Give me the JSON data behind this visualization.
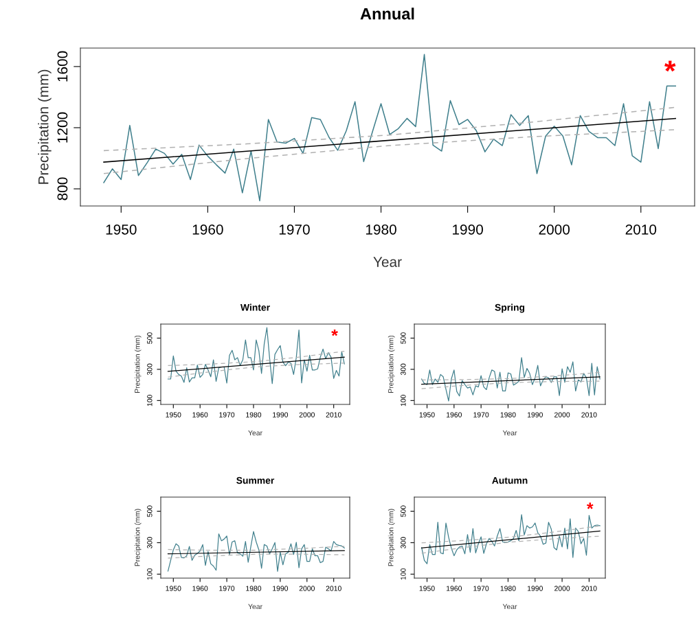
{
  "chart_data": [
    {
      "type": "line",
      "title": "Annual",
      "xlabel": "Year",
      "ylabel": "Precipitation (mm)",
      "xlim": [
        1945.3,
        2016.2
      ],
      "ylim": [
        688,
        1721
      ],
      "xticks": [
        1950,
        1960,
        1970,
        1980,
        1990,
        2000,
        2010
      ],
      "yticks": [
        800,
        1200,
        1600
      ],
      "annotations": [
        "*"
      ],
      "x": [
        1948,
        1949,
        1950,
        1951,
        1952,
        1953,
        1954,
        1955,
        1956,
        1957,
        1958,
        1959,
        1960,
        1961,
        1962,
        1963,
        1964,
        1965,
        1966,
        1967,
        1968,
        1969,
        1970,
        1971,
        1972,
        1973,
        1974,
        1975,
        1976,
        1977,
        1978,
        1979,
        1980,
        1981,
        1982,
        1983,
        1984,
        1985,
        1986,
        1987,
        1988,
        1989,
        1990,
        1991,
        1992,
        1993,
        1994,
        1995,
        1996,
        1997,
        1998,
        1999,
        2000,
        2001,
        2002,
        2003,
        2004,
        2005,
        2006,
        2007,
        2008,
        2009,
        2010,
        2011,
        2012,
        2013,
        2014
      ],
      "series": [
        {
          "color": "#3f7f8c",
          "values": [
            841,
            931,
            861,
            1215,
            887,
            970,
            1060,
            1032,
            962,
            1026,
            861,
            1086,
            1014,
            957,
            903,
            1060,
            774,
            1047,
            722,
            1254,
            1107,
            1099,
            1130,
            1032,
            1266,
            1254,
            1137,
            1052,
            1181,
            1370,
            978,
            1171,
            1357,
            1156,
            1194,
            1261,
            1207,
            1679,
            1086,
            1047,
            1377,
            1220,
            1254,
            1181,
            1042,
            1125,
            1083,
            1285,
            1215,
            1279,
            900,
            1145,
            1210,
            1145,
            957,
            1279,
            1176,
            1135,
            1135,
            1083,
            1357,
            1016,
            975,
            1370,
            1063,
            1473,
            1473
          ]
        },
        {
          "color": "#000000",
          "x": [
            1948,
            2014
          ],
          "values": [
            975,
            1260
          ]
        },
        {
          "color": "#b0b0b0",
          "line_style": "dashed",
          "x": [
            1948,
            1964.5,
            1981,
            1997.5,
            2014
          ],
          "values": [
            1050,
            1094,
            1152,
            1237,
            1333
          ]
        },
        {
          "color": "#b0b0b0",
          "line_style": "dashed",
          "x": [
            1948,
            1964.5,
            1981,
            1997.5,
            2014
          ],
          "values": [
            900,
            998,
            1083,
            1141,
            1187
          ]
        }
      ]
    },
    {
      "type": "line",
      "title": "Winter",
      "xlabel": "Year",
      "ylabel": "Precipitation (mm)",
      "xlim": [
        1945.3,
        2016.0
      ],
      "ylim": [
        75,
        590
      ],
      "xticks": [
        1950,
        1960,
        1970,
        1980,
        1990,
        2000,
        2010
      ],
      "yticks": [
        100,
        300,
        500
      ],
      "annotations": [
        "*"
      ],
      "x": [
        1948,
        1949,
        1950,
        1951,
        1952,
        1953,
        1954,
        1955,
        1956,
        1957,
        1958,
        1959,
        1960,
        1961,
        1962,
        1963,
        1964,
        1965,
        1966,
        1967,
        1968,
        1969,
        1970,
        1971,
        1972,
        1973,
        1974,
        1975,
        1976,
        1977,
        1978,
        1979,
        1980,
        1981,
        1982,
        1983,
        1984,
        1985,
        1986,
        1987,
        1988,
        1989,
        1990,
        1991,
        1992,
        1993,
        1994,
        1995,
        1996,
        1997,
        1998,
        1999,
        2000,
        2001,
        2002,
        2003,
        2004,
        2005,
        2006,
        2007,
        2008,
        2009,
        2010,
        2011,
        2012,
        2013,
        2014
      ],
      "series": [
        {
          "color": "#3f7f8c",
          "values": [
            238,
            238,
            386,
            288,
            267,
            257,
            216,
            310,
            219,
            245,
            245,
            328,
            248,
            267,
            332,
            296,
            252,
            361,
            223,
            310,
            315,
            315,
            212,
            390,
            422,
            361,
            375,
            325,
            361,
            488,
            375,
            375,
            296,
            488,
            419,
            274,
            462,
            567,
            375,
            209,
            396,
            426,
            452,
            346,
            323,
            346,
            339,
            267,
            375,
            552,
            213,
            361,
            288,
            390,
            296,
            296,
            303,
            378,
            430,
            368,
            407,
            378,
            242,
            293,
            257,
            412,
            335
          ]
        },
        {
          "color": "#000000",
          "x": [
            1948,
            2014
          ],
          "values": [
            287,
            378
          ]
        },
        {
          "color": "#b0b0b0",
          "line_style": "dashed",
          "x": [
            1948,
            1964.5,
            1981,
            1997.5,
            2014
          ],
          "values": [
            324,
            334,
            350,
            379,
            416
          ]
        },
        {
          "color": "#b0b0b0",
          "line_style": "dashed",
          "x": [
            1948,
            1964.5,
            1981,
            1997.5,
            2014
          ],
          "values": [
            250,
            286,
            316,
            331,
            340
          ]
        }
      ]
    },
    {
      "type": "line",
      "title": "Spring",
      "xlabel": "Year",
      "ylabel": "Precipitation (mm)",
      "xlim": [
        1945.3,
        2016.0
      ],
      "ylim": [
        75,
        590
      ],
      "xticks": [
        1950,
        1960,
        1970,
        1980,
        1990,
        2000,
        2010
      ],
      "yticks": [
        100,
        300,
        500
      ],
      "x": [
        1948,
        1949,
        1950,
        1951,
        1952,
        1953,
        1954,
        1955,
        1956,
        1957,
        1958,
        1959,
        1960,
        1961,
        1962,
        1963,
        1964,
        1965,
        1966,
        1967,
        1968,
        1969,
        1970,
        1971,
        1972,
        1973,
        1974,
        1975,
        1976,
        1977,
        1978,
        1979,
        1980,
        1981,
        1982,
        1983,
        1984,
        1985,
        1986,
        1987,
        1988,
        1989,
        1990,
        1991,
        1992,
        1993,
        1994,
        1995,
        1996,
        1997,
        1998,
        1999,
        2000,
        2001,
        2002,
        2003,
        2004,
        2005,
        2006,
        2007,
        2008,
        2009,
        2010,
        2011,
        2012,
        2013,
        2014
      ],
      "series": [
        {
          "color": "#3f7f8c",
          "values": [
            238,
            209,
            202,
            296,
            202,
            238,
            216,
            267,
            252,
            173,
            97,
            238,
            296,
            158,
            129,
            228,
            202,
            180,
            187,
            136,
            194,
            187,
            259,
            187,
            170,
            245,
            296,
            286,
            180,
            281,
            161,
            161,
            277,
            271,
            199,
            209,
            223,
            375,
            248,
            306,
            274,
            202,
            245,
            325,
            194,
            233,
            252,
            245,
            216,
            252,
            252,
            132,
            303,
            216,
            317,
            281,
            348,
            161,
            233,
            219,
            274,
            245,
            132,
            339,
            136,
            317,
            238
          ]
        },
        {
          "color": "#000000",
          "x": [
            1948,
            2014
          ],
          "values": [
            204,
            252
          ]
        },
        {
          "color": "#b0b0b0",
          "line_style": "dashed",
          "x": [
            1948,
            1964.5,
            1981,
            1997.5,
            2014
          ],
          "values": [
            232,
            234,
            241,
            258,
            280
          ]
        },
        {
          "color": "#b0b0b0",
          "line_style": "dashed",
          "x": [
            1948,
            1964.5,
            1981,
            1997.5,
            2014
          ],
          "values": [
            176,
            198,
            215,
            222,
            224
          ]
        }
      ]
    },
    {
      "type": "line",
      "title": "Summer",
      "xlabel": "Year",
      "ylabel": "Precipitation (mm)",
      "xlim": [
        1945.3,
        2016.0
      ],
      "ylim": [
        75,
        590
      ],
      "xticks": [
        1950,
        1960,
        1970,
        1980,
        1990,
        2000,
        2010
      ],
      "yticks": [
        100,
        300,
        500
      ],
      "x": [
        1948,
        1949,
        1950,
        1951,
        1952,
        1953,
        1954,
        1955,
        1956,
        1957,
        1958,
        1959,
        1960,
        1961,
        1962,
        1963,
        1964,
        1965,
        1966,
        1967,
        1968,
        1969,
        1970,
        1971,
        1972,
        1973,
        1974,
        1975,
        1976,
        1977,
        1978,
        1979,
        1980,
        1981,
        1982,
        1983,
        1984,
        1985,
        1986,
        1987,
        1988,
        1989,
        1990,
        1991,
        1992,
        1993,
        1994,
        1995,
        1996,
        1997,
        1998,
        1999,
        2000,
        2001,
        2002,
        2003,
        2004,
        2005,
        2006,
        2007,
        2008,
        2009,
        2010,
        2011,
        2012,
        2013,
        2014
      ],
      "series": [
        {
          "color": "#3f7f8c",
          "values": [
            119,
            188,
            254,
            293,
            279,
            206,
            203,
            217,
            276,
            188,
            220,
            232,
            247,
            288,
            156,
            244,
            166,
            151,
            125,
            356,
            312,
            323,
            342,
            225,
            305,
            312,
            235,
            229,
            214,
            308,
            176,
            276,
            371,
            305,
            254,
            137,
            288,
            279,
            229,
            261,
            301,
            118,
            239,
            159,
            229,
            239,
            293,
            225,
            302,
            141,
            261,
            288,
            181,
            181,
            261,
            217,
            217,
            173,
            181,
            271,
            261,
            247,
            308,
            288,
            283,
            279,
            266
          ]
        },
        {
          "color": "#000000",
          "x": [
            1948,
            2014
          ],
          "values": [
            229,
            250
          ]
        },
        {
          "color": "#b0b0b0",
          "line_style": "dashed",
          "x": [
            1948,
            1964.5,
            1981,
            1997.5,
            2014
          ],
          "values": [
            256,
            252,
            252,
            263,
            277
          ]
        },
        {
          "color": "#b0b0b0",
          "line_style": "dashed",
          "x": [
            1948,
            1964.5,
            1981,
            1997.5,
            2014
          ],
          "values": [
            202,
            216,
            227,
            227,
            223
          ]
        }
      ]
    },
    {
      "type": "line",
      "title": "Autumn",
      "xlabel": "Year",
      "ylabel": "Precipitation (mm)",
      "xlim": [
        1945.3,
        2016.0
      ],
      "ylim": [
        75,
        590
      ],
      "xticks": [
        1950,
        1960,
        1970,
        1980,
        1990,
        2000,
        2010
      ],
      "yticks": [
        100,
        300,
        500
      ],
      "annotations": [
        "*"
      ],
      "x": [
        1948,
        1949,
        1950,
        1951,
        1952,
        1953,
        1954,
        1955,
        1956,
        1957,
        1958,
        1959,
        1960,
        1961,
        1962,
        1963,
        1964,
        1965,
        1966,
        1967,
        1968,
        1969,
        1970,
        1971,
        1972,
        1973,
        1974,
        1975,
        1976,
        1977,
        1978,
        1979,
        1980,
        1981,
        1982,
        1983,
        1984,
        1985,
        1986,
        1987,
        1988,
        1989,
        1990,
        1991,
        1992,
        1993,
        1994,
        1995,
        1996,
        1997,
        1998,
        1999,
        2000,
        2001,
        2002,
        2003,
        2004,
        2005,
        2006,
        2007,
        2008,
        2009,
        2010,
        2011,
        2012,
        2013,
        2014
      ],
      "series": [
        {
          "color": "#3f7f8c",
          "values": [
            269,
            188,
            166,
            288,
            225,
            225,
            430,
            235,
            229,
            425,
            334,
            266,
            217,
            254,
            273,
            279,
            229,
            351,
            239,
            390,
            235,
            293,
            337,
            232,
            293,
            327,
            308,
            279,
            342,
            390,
            305,
            302,
            305,
            312,
            327,
            378,
            312,
            478,
            349,
            408,
            393,
            400,
            425,
            363,
            342,
            290,
            298,
            430,
            386,
            269,
            254,
            342,
            273,
            393,
            261,
            452,
            206,
            393,
            371,
            293,
            327,
            220,
            474,
            393,
            408,
            412,
            408
          ]
        },
        {
          "color": "#000000",
          "x": [
            1948,
            2014
          ],
          "values": [
            266,
            374
          ]
        },
        {
          "color": "#b0b0b0",
          "line_style": "dashed",
          "x": [
            1948,
            1964.5,
            1981,
            1997.5,
            2014
          ],
          "values": [
            299,
            315,
            336,
            369,
            407
          ]
        },
        {
          "color": "#b0b0b0",
          "line_style": "dashed",
          "x": [
            1948,
            1964.5,
            1981,
            1997.5,
            2014
          ],
          "values": [
            233,
            271,
            304,
            325,
            341
          ]
        }
      ]
    }
  ]
}
